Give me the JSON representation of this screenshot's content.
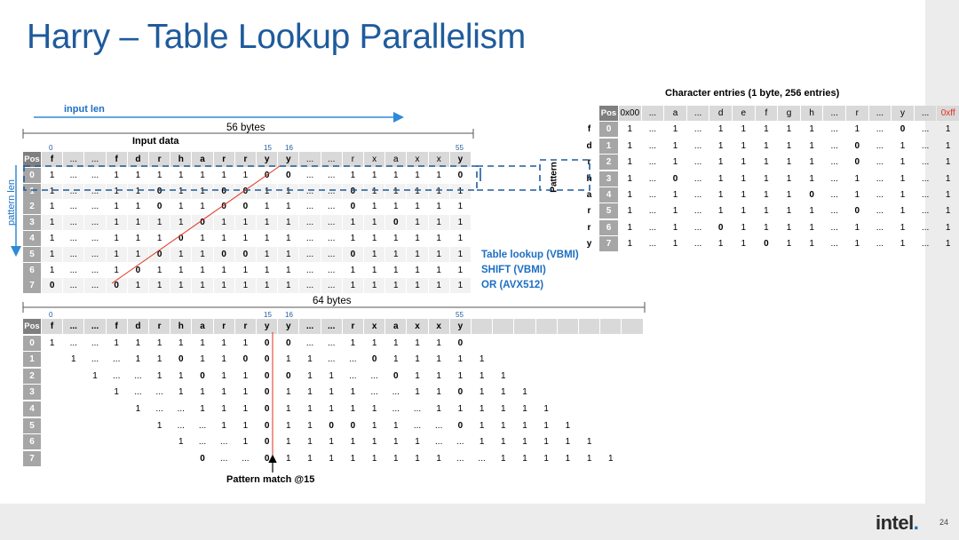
{
  "slide": {
    "title": "Harry – Table Lookup Parallelism"
  },
  "labels": {
    "input_len": "input len",
    "bytes_56": "56 bytes",
    "input_data": "Input data",
    "bytes_64": "64 bytes",
    "char_entries": "Character entries (1 byte, 256 entries)",
    "pattern_match": "Pattern match @15",
    "pattern_len": "pattern len",
    "pattern_axis": "Pattern"
  },
  "ticks": {
    "t0": "0",
    "t15": "15",
    "t16": "16",
    "t55": "55"
  },
  "notes": [
    "Table lookup (VBMI)",
    "SHIFT (VBMI)",
    "OR (AVX512)"
  ],
  "input_table": {
    "header": [
      "Pos",
      "f",
      "...",
      "...",
      "f",
      "d",
      "r",
      "h",
      "a",
      "r",
      "r",
      "y",
      "y",
      "...",
      "...",
      "r",
      "x",
      "a",
      "x",
      "x",
      "y"
    ],
    "rows": [
      {
        "pos": "0",
        "cells": [
          "1",
          "...",
          "...",
          "1",
          "1",
          "1",
          "1",
          "1",
          "1",
          "1",
          "0",
          "0",
          "...",
          "...",
          "1",
          "1",
          "1",
          "1",
          "1",
          "0"
        ]
      },
      {
        "pos": "1",
        "cells": [
          "1",
          "...",
          "...",
          "1",
          "1",
          "0",
          "1",
          "1",
          "0",
          "0",
          "1",
          "1",
          "...",
          "...",
          "0",
          "1",
          "1",
          "1",
          "1",
          "1"
        ]
      },
      {
        "pos": "2",
        "cells": [
          "1",
          "...",
          "...",
          "1",
          "1",
          "0",
          "1",
          "1",
          "0",
          "0",
          "1",
          "1",
          "...",
          "...",
          "0",
          "1",
          "1",
          "1",
          "1",
          "1"
        ]
      },
      {
        "pos": "3",
        "cells": [
          "1",
          "...",
          "...",
          "1",
          "1",
          "1",
          "1",
          "0",
          "1",
          "1",
          "1",
          "1",
          "...",
          "...",
          "1",
          "1",
          "0",
          "1",
          "1",
          "1"
        ]
      },
      {
        "pos": "4",
        "cells": [
          "1",
          "...",
          "...",
          "1",
          "1",
          "1",
          "0",
          "1",
          "1",
          "1",
          "1",
          "1",
          "...",
          "...",
          "1",
          "1",
          "1",
          "1",
          "1",
          "1"
        ]
      },
      {
        "pos": "5",
        "cells": [
          "1",
          "...",
          "...",
          "1",
          "1",
          "0",
          "1",
          "1",
          "0",
          "0",
          "1",
          "1",
          "...",
          "...",
          "0",
          "1",
          "1",
          "1",
          "1",
          "1"
        ]
      },
      {
        "pos": "6",
        "cells": [
          "1",
          "...",
          "...",
          "1",
          "0",
          "1",
          "1",
          "1",
          "1",
          "1",
          "1",
          "1",
          "...",
          "...",
          "1",
          "1",
          "1",
          "1",
          "1",
          "1"
        ]
      },
      {
        "pos": "7",
        "cells": [
          "0",
          "...",
          "...",
          "0",
          "1",
          "1",
          "1",
          "1",
          "1",
          "1",
          "1",
          "1",
          "...",
          "...",
          "1",
          "1",
          "1",
          "1",
          "1",
          "1"
        ]
      }
    ]
  },
  "shifted_table": {
    "header": [
      "Pos",
      "f",
      "...",
      "...",
      "f",
      "d",
      "r",
      "h",
      "a",
      "r",
      "r",
      "y",
      "y",
      "...",
      "...",
      "r",
      "x",
      "a",
      "x",
      "x",
      "y",
      "",
      "",
      "",
      "",
      "",
      "",
      "",
      ""
    ],
    "rows": [
      {
        "pos": "0",
        "cells": [
          "1",
          "...",
          "...",
          "1",
          "1",
          "1",
          "1",
          "1",
          "1",
          "1",
          "0",
          "0",
          "...",
          "...",
          "1",
          "1",
          "1",
          "1",
          "1",
          "0"
        ]
      },
      {
        "pos": "1",
        "cells": [
          "",
          "1",
          "...",
          "...",
          "1",
          "1",
          "0",
          "1",
          "1",
          "0",
          "0",
          "1",
          "1",
          "...",
          "...",
          "0",
          "1",
          "1",
          "1",
          "1",
          "1"
        ]
      },
      {
        "pos": "2",
        "cells": [
          "",
          "",
          "1",
          "...",
          "...",
          "1",
          "1",
          "0",
          "1",
          "1",
          "0",
          "0",
          "1",
          "1",
          "...",
          "...",
          "0",
          "1",
          "1",
          "1",
          "1",
          "1"
        ]
      },
      {
        "pos": "3",
        "cells": [
          "",
          "",
          "",
          "1",
          "...",
          "...",
          "1",
          "1",
          "1",
          "1",
          "0",
          "1",
          "1",
          "1",
          "1",
          "...",
          "...",
          "1",
          "1",
          "0",
          "1",
          "1",
          "1"
        ]
      },
      {
        "pos": "4",
        "cells": [
          "",
          "",
          "",
          "",
          "1",
          "...",
          "...",
          "1",
          "1",
          "1",
          "0",
          "1",
          "1",
          "1",
          "1",
          "1",
          "...",
          "...",
          "1",
          "1",
          "1",
          "1",
          "1",
          "1"
        ]
      },
      {
        "pos": "5",
        "cells": [
          "",
          "",
          "",
          "",
          "",
          "1",
          "...",
          "...",
          "1",
          "1",
          "0",
          "1",
          "1",
          "0",
          "0",
          "1",
          "1",
          "...",
          "...",
          "0",
          "1",
          "1",
          "1",
          "1",
          "1"
        ]
      },
      {
        "pos": "6",
        "cells": [
          "",
          "",
          "",
          "",
          "",
          "",
          "1",
          "...",
          "...",
          "1",
          "0",
          "1",
          "1",
          "1",
          "1",
          "1",
          "1",
          "1",
          "...",
          "...",
          "1",
          "1",
          "1",
          "1",
          "1",
          "1"
        ]
      },
      {
        "pos": "7",
        "cells": [
          "",
          "",
          "",
          "",
          "",
          "",
          "",
          "0",
          "...",
          "...",
          "0",
          "1",
          "1",
          "1",
          "1",
          "1",
          "1",
          "1",
          "1",
          "...",
          "...",
          "1",
          "1",
          "1",
          "1",
          "1",
          "1"
        ]
      }
    ]
  },
  "char_table": {
    "header": [
      "Pos",
      "0x00",
      "...",
      "a",
      "...",
      "d",
      "e",
      "f",
      "g",
      "h",
      "...",
      "r",
      "...",
      "y",
      "...",
      "0xff"
    ],
    "rows": [
      {
        "char": "f",
        "pos": "0",
        "cells": [
          "1",
          "...",
          "1",
          "...",
          "1",
          "1",
          "1",
          "1",
          "1",
          "...",
          "1",
          "...",
          "0",
          "...",
          "1"
        ]
      },
      {
        "char": "d",
        "pos": "1",
        "cells": [
          "1",
          "...",
          "1",
          "...",
          "1",
          "1",
          "1",
          "1",
          "1",
          "...",
          "0",
          "...",
          "1",
          "...",
          "1"
        ]
      },
      {
        "char": "r",
        "pos": "2",
        "cells": [
          "1",
          "...",
          "1",
          "...",
          "1",
          "1",
          "1",
          "1",
          "1",
          "...",
          "0",
          "...",
          "1",
          "...",
          "1"
        ]
      },
      {
        "char": "h",
        "pos": "3",
        "cells": [
          "1",
          "...",
          "0",
          "...",
          "1",
          "1",
          "1",
          "1",
          "1",
          "...",
          "1",
          "...",
          "1",
          "...",
          "1"
        ]
      },
      {
        "char": "a",
        "pos": "4",
        "cells": [
          "1",
          "...",
          "1",
          "...",
          "1",
          "1",
          "1",
          "1",
          "0",
          "...",
          "1",
          "...",
          "1",
          "...",
          "1"
        ]
      },
      {
        "char": "r",
        "pos": "5",
        "cells": [
          "1",
          "...",
          "1",
          "...",
          "1",
          "1",
          "1",
          "1",
          "1",
          "...",
          "0",
          "...",
          "1",
          "...",
          "1"
        ]
      },
      {
        "char": "r",
        "pos": "6",
        "cells": [
          "1",
          "...",
          "1",
          "...",
          "0",
          "1",
          "1",
          "1",
          "1",
          "...",
          "1",
          "...",
          "1",
          "...",
          "1"
        ]
      },
      {
        "char": "y",
        "pos": "7",
        "cells": [
          "1",
          "...",
          "1",
          "...",
          "1",
          "1",
          "0",
          "1",
          "1",
          "...",
          "1",
          "...",
          "1",
          "...",
          "1"
        ]
      }
    ]
  },
  "footer": {
    "logo": "intel",
    "page": "24"
  }
}
